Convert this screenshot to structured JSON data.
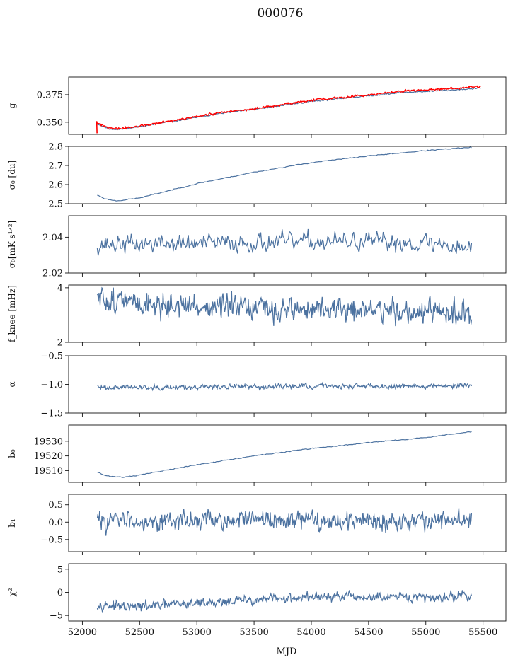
{
  "figure_title": "000076",
  "x_label": "MJD",
  "x_ticks": [
    52000,
    52500,
    53000,
    53500,
    54000,
    54500,
    55000,
    55500
  ],
  "x_tick_labels": [
    "52000",
    "52500",
    "53000",
    "53500",
    "54000",
    "54500",
    "55000",
    "55500"
  ],
  "colors": {
    "series": "#4c72a0",
    "overlay": "#ff0000",
    "axes": "#111111"
  },
  "chart_data": [
    {
      "type": "line",
      "ylabel": "g",
      "ylim": [
        0.339,
        0.391
      ],
      "yticks": [
        0.35,
        0.375
      ],
      "ytick_labels": [
        "0.350",
        "0.375"
      ],
      "xlim": [
        51880,
        55700
      ],
      "x_range": [
        52120,
        55480
      ],
      "trend": [
        [
          52120,
          0.349
        ],
        [
          52230,
          0.344
        ],
        [
          52330,
          0.3435
        ],
        [
          52500,
          0.346
        ],
        [
          52800,
          0.351
        ],
        [
          53200,
          0.358
        ],
        [
          53600,
          0.363
        ],
        [
          54000,
          0.369
        ],
        [
          54400,
          0.373
        ],
        [
          54800,
          0.377
        ],
        [
          55200,
          0.379
        ],
        [
          55480,
          0.381
        ]
      ],
      "noise": 0.0005,
      "seed": 11,
      "n": 500,
      "overlay": {
        "trend": [
          [
            52120,
            0.35
          ],
          [
            52230,
            0.3445
          ],
          [
            52330,
            0.344
          ],
          [
            52500,
            0.3465
          ],
          [
            52800,
            0.3515
          ],
          [
            53200,
            0.3585
          ],
          [
            53600,
            0.3635
          ],
          [
            54000,
            0.37
          ],
          [
            54400,
            0.374
          ],
          [
            54800,
            0.378
          ],
          [
            55200,
            0.3805
          ],
          [
            55480,
            0.3825
          ]
        ],
        "noise": 0.0008,
        "seed": 77,
        "n": 600
      }
    },
    {
      "type": "line",
      "ylabel": "σ₀ [du]",
      "ylim": [
        2.5,
        2.8
      ],
      "yticks": [
        2.5,
        2.6,
        2.7,
        2.8
      ],
      "ytick_labels": [
        "2.5",
        "2.6",
        "2.7",
        "2.8"
      ],
      "xlim": [
        51880,
        55700
      ],
      "x_range": [
        52130,
        55400
      ],
      "trend": [
        [
          52130,
          2.545
        ],
        [
          52200,
          2.525
        ],
        [
          52300,
          2.515
        ],
        [
          52500,
          2.53
        ],
        [
          53000,
          2.605
        ],
        [
          53500,
          2.665
        ],
        [
          54000,
          2.715
        ],
        [
          54500,
          2.75
        ],
        [
          55000,
          2.778
        ],
        [
          55400,
          2.795
        ]
      ],
      "noise": 0.002,
      "seed": 23,
      "n": 300
    },
    {
      "type": "line",
      "ylabel": "σ₀[mK s¹ᐟ²]",
      "ylim": [
        2.02,
        2.052
      ],
      "yticks": [
        2.02,
        2.04
      ],
      "ytick_labels": [
        "2.02",
        "2.04"
      ],
      "xlim": [
        51880,
        55700
      ],
      "x_range": [
        52130,
        55400
      ],
      "trend": [
        [
          52130,
          2.036
        ],
        [
          53000,
          2.0365
        ],
        [
          54000,
          2.0375
        ],
        [
          55000,
          2.037
        ],
        [
          55400,
          2.034
        ]
      ],
      "noise": 0.0042,
      "seed": 37,
      "n": 420
    },
    {
      "type": "line",
      "ylabel": "f_knee [mHz]",
      "ylim": [
        2.0,
        4.1
      ],
      "yticks": [
        2,
        4
      ],
      "ytick_labels": [
        "2",
        "4"
      ],
      "xlim": [
        51880,
        55700
      ],
      "x_range": [
        52130,
        55400
      ],
      "trend": [
        [
          52130,
          3.6
        ],
        [
          52600,
          3.4
        ],
        [
          53500,
          3.2
        ],
        [
          54500,
          3.2
        ],
        [
          55400,
          3.0
        ]
      ],
      "noise": 0.36,
      "seed": 51,
      "n": 650
    },
    {
      "type": "line",
      "ylabel": "α",
      "ylim": [
        -1.5,
        -0.5
      ],
      "yticks": [
        -1.5,
        -1.0,
        -0.5
      ],
      "ytick_labels": [
        "−1.5",
        "−1.0",
        "−0.5"
      ],
      "xlim": [
        51880,
        55700
      ],
      "x_range": [
        52130,
        55400
      ],
      "trend": [
        [
          52130,
          -1.05
        ],
        [
          55400,
          -1.02
        ]
      ],
      "noise": 0.035,
      "seed": 63,
      "n": 650
    },
    {
      "type": "line",
      "ylabel": "b₀",
      "ylim": [
        19502,
        19541
      ],
      "yticks": [
        19510,
        19520,
        19530
      ],
      "ytick_labels": [
        "19510",
        "19520",
        "19530"
      ],
      "xlim": [
        51880,
        55700
      ],
      "x_range": [
        52130,
        55400
      ],
      "trend": [
        [
          52130,
          19509
        ],
        [
          52200,
          19506.5
        ],
        [
          52350,
          19505.5
        ],
        [
          52500,
          19507
        ],
        [
          53000,
          19514
        ],
        [
          53500,
          19520
        ],
        [
          54000,
          19525
        ],
        [
          54500,
          19529
        ],
        [
          55000,
          19532.5
        ],
        [
          55400,
          19536.5
        ]
      ],
      "noise": 0.25,
      "seed": 71,
      "n": 300
    },
    {
      "type": "line",
      "ylabel": "b₁",
      "ylim": [
        -0.85,
        0.8
      ],
      "yticks": [
        -0.5,
        0.0,
        0.5
      ],
      "ytick_labels": [
        "−0.5",
        "0.0",
        "0.5"
      ],
      "xlim": [
        51880,
        55700
      ],
      "x_range": [
        52130,
        55400
      ],
      "trend": [
        [
          52130,
          0.05
        ],
        [
          55400,
          0.05
        ]
      ],
      "noise": 0.22,
      "seed": 83,
      "n": 650
    },
    {
      "type": "line",
      "ylabel": "χ²",
      "ylim": [
        -6.2,
        6.2
      ],
      "yticks": [
        -5,
        0,
        5
      ],
      "ytick_labels": [
        "−5",
        "0",
        "5"
      ],
      "xlim": [
        51880,
        55700
      ],
      "x_range": [
        52130,
        55400
      ],
      "trend": [
        [
          52130,
          -2.5
        ],
        [
          52400,
          -3.3
        ],
        [
          53000,
          -2.3
        ],
        [
          54000,
          -1.0
        ],
        [
          55000,
          -1.2
        ],
        [
          55400,
          -0.6
        ]
      ],
      "noise": 0.85,
      "seed": 97,
      "n": 650
    }
  ]
}
